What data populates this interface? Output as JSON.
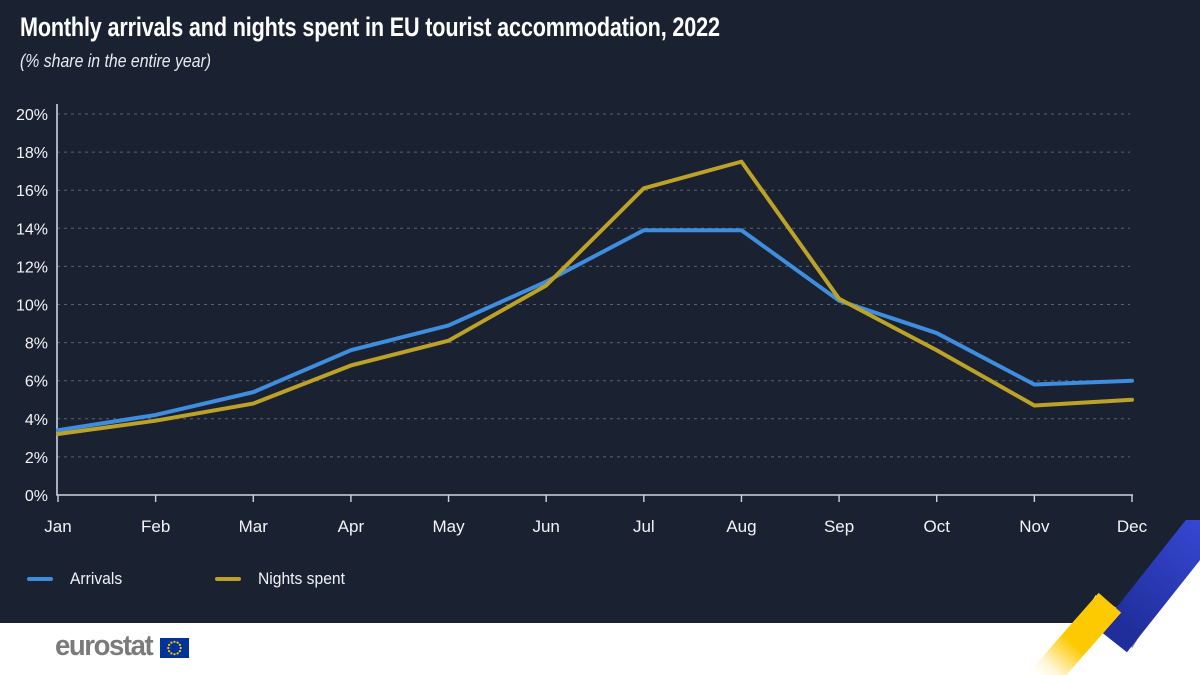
{
  "header": {
    "title": "Monthly arrivals and nights spent in EU tourist accommodation, 2022",
    "subtitle": "(% share in the entire year)"
  },
  "chart_data": {
    "type": "line",
    "title": "Monthly arrivals and nights spent in EU tourist accommodation, 2022",
    "subtitle": "(% share in the entire year)",
    "categories": [
      "Jan",
      "Feb",
      "Mar",
      "Apr",
      "May",
      "Jun",
      "Jul",
      "Aug",
      "Sep",
      "Oct",
      "Nov",
      "Dec"
    ],
    "series": [
      {
        "name": "Arrivals",
        "color": "#3f8dde",
        "values": [
          3.4,
          4.2,
          5.4,
          7.6,
          8.9,
          11.2,
          13.9,
          13.9,
          10.2,
          8.5,
          5.8,
          6.0
        ]
      },
      {
        "name": "Nights spent",
        "color": "#bda228",
        "values": [
          3.2,
          3.9,
          4.8,
          6.8,
          8.1,
          11.0,
          16.1,
          17.5,
          10.3,
          7.6,
          4.7,
          5.0
        ]
      }
    ],
    "xlabel": "",
    "ylabel": "",
    "ylim": [
      0,
      20
    ],
    "ytick_step": 2,
    "ytick_suffix": "%",
    "grid": true,
    "grid_style": "dashed",
    "legend_position": "bottom-left"
  },
  "legend": {
    "items": [
      "Arrivals",
      "Nights spent"
    ]
  },
  "footer": {
    "logo_text": "eurostat"
  },
  "colors": {
    "background": "#1a2232",
    "text": "#f2f4f7",
    "axis": "#cfd4dc",
    "grid": "#9aa2b2",
    "arrivals": "#3f8dde",
    "nights_spent": "#bda228",
    "eu_blue": "#003399",
    "eu_yellow": "#ffcc00",
    "logo_gray": "#7b7b7b",
    "deco_yellow": "#fdc900",
    "deco_blue_dark": "#202e9b",
    "deco_blue_light": "#3547d2"
  }
}
